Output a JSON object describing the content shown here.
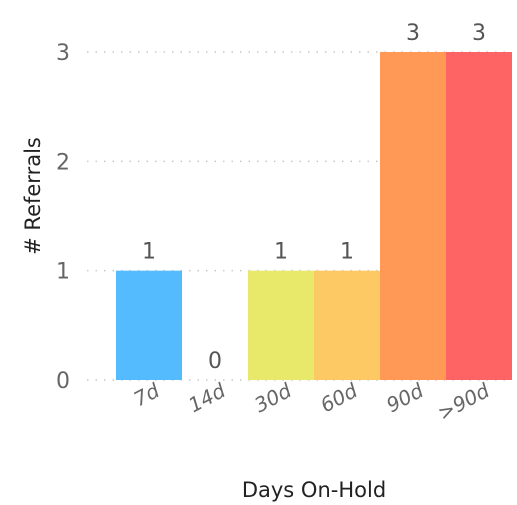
{
  "chart_data": {
    "type": "bar",
    "categories": [
      "7d",
      "14d",
      "30d",
      "60d",
      "90d",
      ">90d"
    ],
    "values": [
      1,
      0,
      1,
      1,
      3,
      3
    ],
    "colors": [
      "#55bbff",
      "#ffffff",
      "#e8e86a",
      "#fcc965",
      "#ff9955",
      "#ff6464"
    ],
    "xlabel": "Days On-Hold",
    "ylabel": "# Referrals",
    "ylim": [
      0,
      3
    ],
    "yticks": [
      "0",
      "1",
      "2",
      "3"
    ],
    "grid": true
  }
}
